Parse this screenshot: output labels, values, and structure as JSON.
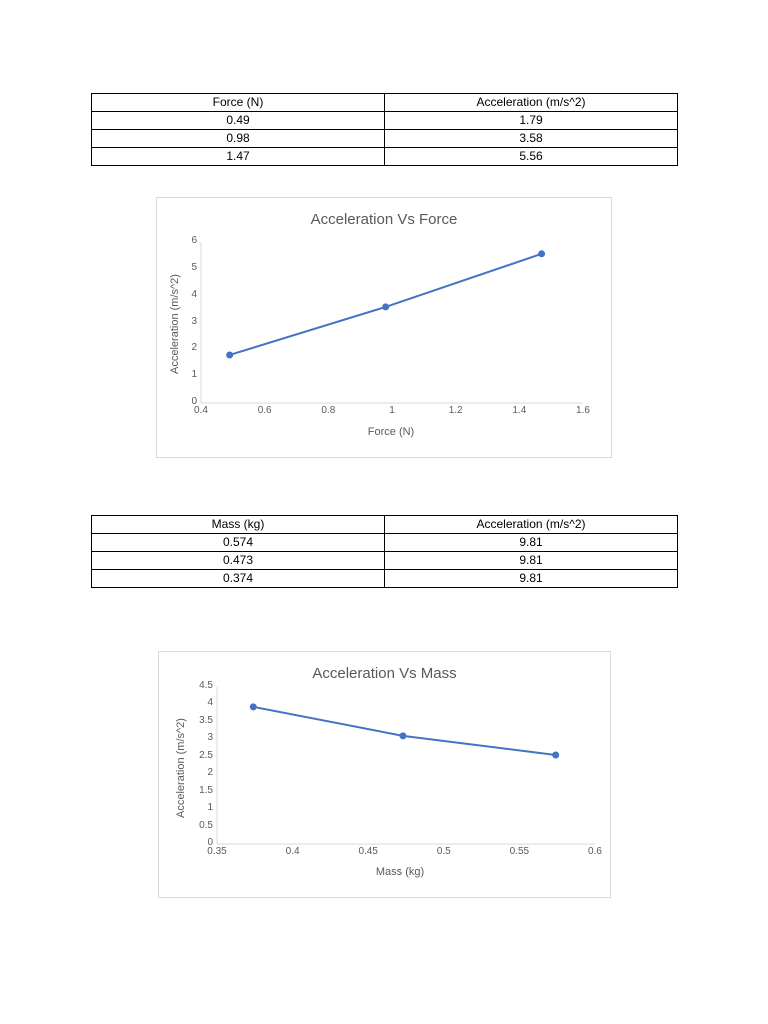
{
  "table1": {
    "headers": [
      "Force (N)",
      "Acceleration (m/s^2)"
    ],
    "rows": [
      [
        "0.49",
        "1.79"
      ],
      [
        "0.98",
        "3.58"
      ],
      [
        "1.47",
        "5.56"
      ]
    ]
  },
  "table2": {
    "headers": [
      "Mass (kg)",
      "Acceleration (m/s^2)"
    ],
    "rows": [
      [
        "0.574",
        "9.81"
      ],
      [
        "0.473",
        "9.81"
      ],
      [
        "0.374",
        "9.81"
      ]
    ]
  },
  "chart1": {
    "title": "Acceleration Vs Force",
    "xlabel": "Force (N)",
    "ylabel": "Acceleration (m/s^2)",
    "x_ticks": [
      "0.4",
      "0.6",
      "0.8",
      "1",
      "1.2",
      "1.4",
      "1.6"
    ],
    "y_ticks": [
      "0",
      "1",
      "2",
      "3",
      "4",
      "5",
      "6"
    ]
  },
  "chart2": {
    "title": "Acceleration Vs Mass",
    "xlabel": "Mass (kg)",
    "ylabel": "Acceleration (m/s^2)",
    "x_ticks": [
      "0.35",
      "0.4",
      "0.45",
      "0.5",
      "0.55",
      "0.6"
    ],
    "y_ticks": [
      "0",
      "0.5",
      "1",
      "1.5",
      "2",
      "2.5",
      "3",
      "3.5",
      "4",
      "4.5"
    ]
  },
  "colors": {
    "series": "#4472c4",
    "axis": "#d9d9d9",
    "text": "#595959"
  },
  "chart_data": [
    {
      "type": "line",
      "title": "Acceleration Vs Force",
      "xlabel": "Force (N)",
      "ylabel": "Acceleration (m/s^2)",
      "x": [
        0.49,
        0.98,
        1.47
      ],
      "series": [
        {
          "name": "Acceleration",
          "values": [
            1.79,
            3.58,
            5.56
          ]
        }
      ],
      "xlim": [
        0.4,
        1.6
      ],
      "ylim": [
        0,
        6
      ],
      "grid": false,
      "legend": "none"
    },
    {
      "type": "line",
      "title": "Acceleration Vs Mass",
      "xlabel": "Mass (kg)",
      "ylabel": "Acceleration (m/s^2)",
      "x": [
        0.374,
        0.473,
        0.574
      ],
      "series": [
        {
          "name": "Acceleration",
          "values": [
            3.93,
            3.1,
            2.55
          ]
        }
      ],
      "xlim": [
        0.35,
        0.6
      ],
      "ylim": [
        0,
        4.5
      ],
      "grid": false,
      "legend": "none"
    }
  ]
}
